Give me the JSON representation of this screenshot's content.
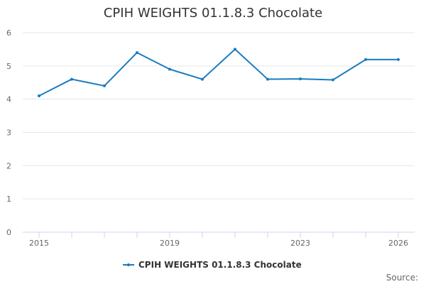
{
  "chart_data": {
    "type": "line",
    "title": "CPIH WEIGHTS 01.1.8.3 Chocolate",
    "xlabel": "",
    "ylabel": "",
    "x": [
      2015,
      2016,
      2017,
      2018,
      2019,
      2020,
      2021,
      2022,
      2023,
      2024,
      2025,
      2026
    ],
    "series": [
      {
        "name": "CPIH WEIGHTS 01.1.8.3 Chocolate",
        "values": [
          4.1,
          4.6,
          4.4,
          5.4,
          4.9,
          4.6,
          5.5,
          4.6,
          4.61,
          4.58,
          5.19,
          5.19
        ]
      }
    ],
    "x_tick_labels": [
      "2015",
      "2019",
      "2023",
      "2026"
    ],
    "y_ticks": [
      0,
      1,
      2,
      3,
      4,
      5,
      6
    ],
    "xlim": [
      2015,
      2026
    ],
    "ylim": [
      0,
      6
    ],
    "grid": true,
    "legend": "bottom-center",
    "source_label": "Source:",
    "colors": {
      "series": "#1a7cc0",
      "grid": "#e6e6e6",
      "axis": "#ccd6eb"
    }
  }
}
